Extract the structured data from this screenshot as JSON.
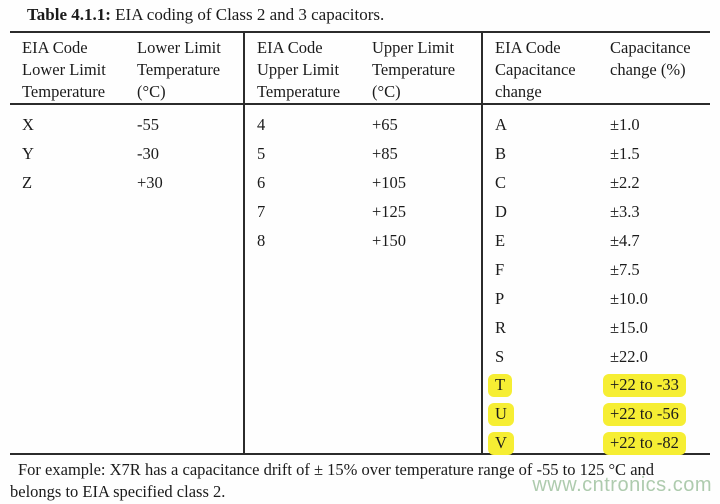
{
  "title": {
    "bold": "Table 4.1.1:",
    "rest": " EIA coding of Class 2 and 3 capacitors."
  },
  "table": {
    "sections": [
      {
        "header": {
          "col1": [
            "EIA Code",
            "Lower Limit",
            "Temperature"
          ],
          "col2": [
            "Lower Limit",
            "Temperature",
            "(°C)"
          ]
        },
        "rows": [
          {
            "code": "X",
            "value": "-55",
            "highlight": false
          },
          {
            "code": "Y",
            "value": "-30",
            "highlight": false
          },
          {
            "code": "Z",
            "value": "+30",
            "highlight": false
          }
        ]
      },
      {
        "header": {
          "col1": [
            "EIA Code",
            "Upper Limit",
            "Temperature"
          ],
          "col2": [
            "Upper Limit",
            "Temperature",
            "(°C)"
          ]
        },
        "rows": [
          {
            "code": "4",
            "value": "+65",
            "highlight": false
          },
          {
            "code": "5",
            "value": "+85",
            "highlight": false
          },
          {
            "code": "6",
            "value": "+105",
            "highlight": false
          },
          {
            "code": "7",
            "value": "+125",
            "highlight": false
          },
          {
            "code": "8",
            "value": "+150",
            "highlight": false
          }
        ]
      },
      {
        "header": {
          "col1": [
            "EIA Code",
            "Capacitance",
            "change"
          ],
          "col2": [
            "Capacitance",
            "change (%)"
          ]
        },
        "rows": [
          {
            "code": "A",
            "value": "±1.0",
            "highlight": false
          },
          {
            "code": "B",
            "value": "±1.5",
            "highlight": false
          },
          {
            "code": "C",
            "value": "±2.2",
            "highlight": false
          },
          {
            "code": "D",
            "value": "±3.3",
            "highlight": false
          },
          {
            "code": "E",
            "value": "±4.7",
            "highlight": false
          },
          {
            "code": "F",
            "value": "±7.5",
            "highlight": false
          },
          {
            "code": "P",
            "value": "±10.0",
            "highlight": false
          },
          {
            "code": "R",
            "value": "±15.0",
            "highlight": false
          },
          {
            "code": "S",
            "value": "±22.0",
            "highlight": false
          },
          {
            "code": "T",
            "value": "+22 to -33",
            "highlight": true
          },
          {
            "code": "U",
            "value": "+22 to -56",
            "highlight": true
          },
          {
            "code": "V",
            "value": "+22 to -82",
            "highlight": true
          }
        ]
      }
    ]
  },
  "footer": {
    "line1": "For example: X7R has a capacitance drift of ± 15% over temperature range of -55 to 125 °C and",
    "line2": "belongs to EIA specified class 2."
  },
  "watermark": {
    "text": "www.cntronics.com"
  },
  "colors": {
    "highlight": "#f6ee33",
    "rule": "#2b2b2b",
    "text": "#1b1b1b",
    "watermark": "#aecbae"
  }
}
